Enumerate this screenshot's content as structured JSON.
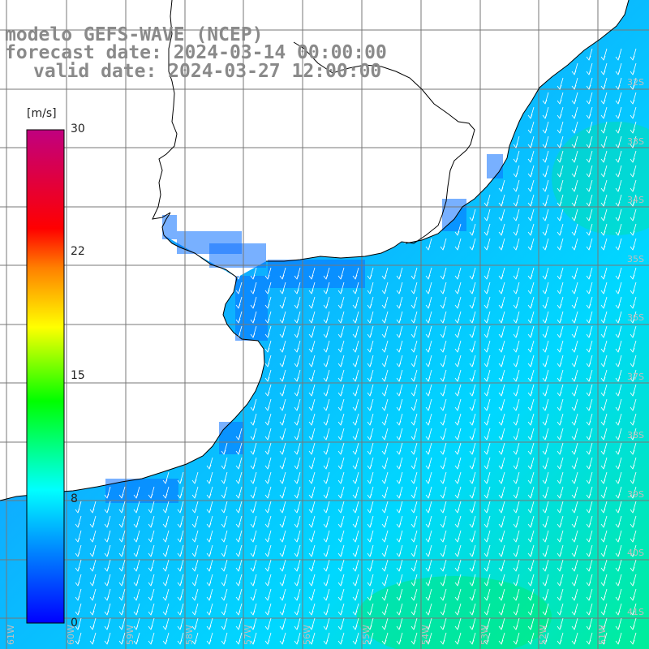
{
  "title": {
    "line1": "modelo GEFS-WAVE (NCEP)",
    "line2": "forecast date: 2024-03-14 00:00:00",
    "line3": "valid date: 2024-03-27 12:00:00"
  },
  "colorbar": {
    "unit": "[m/s]",
    "ticks": [
      "30",
      "22",
      "15",
      "8",
      "0"
    ],
    "tick_values": [
      30,
      22,
      15,
      8,
      0
    ],
    "min": 0,
    "max": 30,
    "colors": [
      "#0000ff",
      "#0080ff",
      "#00ffff",
      "#00ff00",
      "#ffff00",
      "#ff8000",
      "#ff0000",
      "#c00080"
    ]
  },
  "map": {
    "lon_labels": [
      "61W",
      "60W",
      "59W",
      "58W",
      "57W",
      "56W",
      "55W",
      "54W",
      "53W",
      "52W",
      "51W"
    ],
    "lat_labels": [
      "32S",
      "33S",
      "34S",
      "35S",
      "36S",
      "37S",
      "38S",
      "39S",
      "40S",
      "41S"
    ],
    "land_color": "#ffffff",
    "coast_color": "#000000",
    "grid_color": "#777777",
    "arrow_color": "#ffffff",
    "wind_direction": "from north-northeast"
  }
}
